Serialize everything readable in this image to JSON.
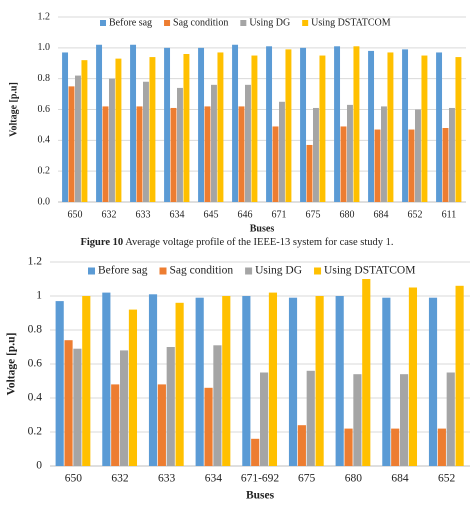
{
  "chart_data": [
    {
      "type": "bar",
      "y_label": "Voltage [p.u]",
      "x_label": "Buses",
      "categories": [
        "650",
        "632",
        "633",
        "634",
        "645",
        "646",
        "671",
        "675",
        "680",
        "684",
        "652",
        "611"
      ],
      "series": [
        {
          "name": "Before sag",
          "color": "#5b9bd5",
          "values": [
            0.97,
            1.02,
            1.02,
            1.0,
            1.0,
            1.02,
            1.01,
            1.0,
            1.01,
            0.98,
            0.99,
            0.97
          ]
        },
        {
          "name": "Sag condition",
          "color": "#ed7d31",
          "values": [
            0.75,
            0.62,
            0.62,
            0.61,
            0.62,
            0.62,
            0.49,
            0.37,
            0.49,
            0.47,
            0.47,
            0.48
          ]
        },
        {
          "name": "Using DG",
          "color": "#a5a5a5",
          "values": [
            0.82,
            0.8,
            0.78,
            0.74,
            0.76,
            0.76,
            0.65,
            0.61,
            0.63,
            0.62,
            0.6,
            0.61
          ]
        },
        {
          "name": "Using DSTATCOM",
          "color": "#ffc000",
          "values": [
            0.92,
            0.93,
            0.94,
            0.96,
            0.97,
            0.95,
            0.99,
            0.95,
            1.01,
            0.97,
            0.95,
            0.94
          ]
        }
      ],
      "ylim": [
        0,
        1.2
      ],
      "yticks": [
        {
          "value": 0,
          "label": "0.0"
        },
        0.2,
        0.4,
        0.6,
        0.8,
        {
          "value": 1,
          "label": "1.0"
        },
        1.2
      ],
      "grid": true,
      "legend": "top"
    },
    {
      "type": "bar",
      "y_label": "Voltage [p.u]",
      "x_label": "Buses",
      "categories": [
        "650",
        "632",
        "633",
        "634",
        "671-692",
        "675",
        "680",
        "684",
        "652"
      ],
      "series": [
        {
          "name": "Before sag",
          "color": "#5b9bd5",
          "values": [
            0.97,
            1.02,
            1.01,
            0.99,
            1.0,
            0.99,
            1.0,
            0.99,
            0.99
          ]
        },
        {
          "name": "Sag condition",
          "color": "#ed7d31",
          "values": [
            0.74,
            0.48,
            0.48,
            0.46,
            0.16,
            0.24,
            0.22,
            0.22,
            0.22
          ]
        },
        {
          "name": "Using DG",
          "color": "#a5a5a5",
          "values": [
            0.69,
            0.68,
            0.7,
            0.71,
            0.55,
            0.56,
            0.54,
            0.54,
            0.55
          ]
        },
        {
          "name": "Using DSTATCOM",
          "color": "#ffc000",
          "values": [
            1.0,
            0.92,
            0.96,
            1.0,
            1.02,
            1.0,
            1.1,
            1.05,
            1.06
          ]
        }
      ],
      "ylim": [
        0,
        1.2
      ],
      "yticks": [
        0,
        0.2,
        0.4,
        0.6,
        0.8,
        1,
        1.2
      ],
      "grid": true,
      "legend": "top"
    }
  ],
  "figure_caption": {
    "label": "Figure 10",
    "text": "Average voltage profile of the IEEE-13 system for case study 1."
  }
}
